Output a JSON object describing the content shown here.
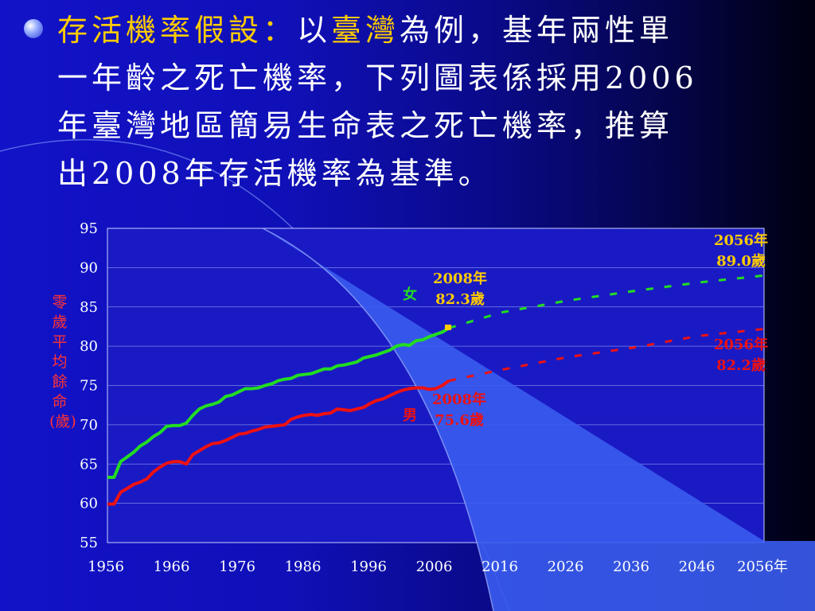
{
  "bullet_text": {
    "line1": {
      "title": "存活機率假設：",
      "pre": "以",
      "region": "臺灣",
      "post": "為例，基年兩性單"
    },
    "line2": "一年齡之死亡機率，下列圖表係採用2006",
    "line3": "年臺灣地區簡易生命表之死亡機率，推算",
    "line4": "出2008年存活機率為基準。"
  },
  "colors": {
    "female": "#22dd22",
    "male": "#ee1111",
    "highlight": "#ffcc00",
    "plot_bg": "#1a1ac4",
    "curve_fill": "#3a5cf0"
  },
  "chart_data": {
    "type": "line",
    "ylabel": "零歲平均餘命(歲)",
    "ylim": [
      55,
      95
    ],
    "xlim": [
      1956,
      2056
    ],
    "yticks": [
      "95",
      "90",
      "85",
      "80",
      "75",
      "70",
      "65",
      "60",
      "55"
    ],
    "xticks": [
      "1956",
      "1966",
      "1976",
      "1986",
      "1996",
      "2006",
      "2016",
      "2026",
      "2036",
      "2046",
      "2056年"
    ],
    "grid": true,
    "series": [
      {
        "name": "女",
        "color": "#22dd22",
        "x": [
          1956,
          1957,
          1958,
          1959,
          1960,
          1961,
          1962,
          1963,
          1964,
          1965,
          1966,
          1967,
          1968,
          1969,
          1970,
          1971,
          1972,
          1973,
          1974,
          1975,
          1976,
          1977,
          1978,
          1979,
          1980,
          1981,
          1982,
          1983,
          1984,
          1985,
          1986,
          1987,
          1988,
          1989,
          1990,
          1991,
          1992,
          1993,
          1994,
          1995,
          1996,
          1997,
          1998,
          1999,
          2000,
          2001,
          2002,
          2003,
          2004,
          2005,
          2006,
          2007,
          2008
        ],
        "y": [
          63.3,
          63.3,
          65.3,
          65.9,
          66.5,
          67.3,
          67.8,
          68.5,
          69.0,
          69.8,
          69.9,
          69.9,
          70.2,
          71.2,
          72.0,
          72.4,
          72.6,
          72.9,
          73.6,
          73.8,
          74.2,
          74.6,
          74.6,
          74.7,
          75.0,
          75.2,
          75.6,
          75.8,
          75.9,
          76.3,
          76.4,
          76.5,
          76.8,
          77.1,
          77.1,
          77.5,
          77.6,
          77.8,
          78.0,
          78.5,
          78.7,
          78.9,
          79.2,
          79.5,
          80.0,
          80.2,
          80.1,
          80.7,
          80.8,
          81.2,
          81.5,
          81.8,
          82.3
        ],
        "projection": {
          "x": [
            2008,
            2016,
            2026,
            2036,
            2046,
            2056
          ],
          "y": [
            82.3,
            84.3,
            85.8,
            87.0,
            88.1,
            89.0
          ]
        }
      },
      {
        "name": "男",
        "color": "#ee1111",
        "x": [
          1956,
          1957,
          1958,
          1959,
          1960,
          1961,
          1962,
          1963,
          1964,
          1965,
          1966,
          1967,
          1968,
          1969,
          1970,
          1971,
          1972,
          1973,
          1974,
          1975,
          1976,
          1977,
          1978,
          1979,
          1980,
          1981,
          1982,
          1983,
          1984,
          1985,
          1986,
          1987,
          1988,
          1989,
          1990,
          1991,
          1992,
          1993,
          1994,
          1995,
          1996,
          1997,
          1998,
          1999,
          2000,
          2001,
          2002,
          2003,
          2004,
          2005,
          2006,
          2007,
          2008
        ],
        "y": [
          59.9,
          59.9,
          61.4,
          61.9,
          62.4,
          62.7,
          63.1,
          64.0,
          64.6,
          65.1,
          65.3,
          65.3,
          65.0,
          66.2,
          66.7,
          67.2,
          67.6,
          67.7,
          68.0,
          68.4,
          68.8,
          68.9,
          69.2,
          69.4,
          69.7,
          69.8,
          69.9,
          70.0,
          70.7,
          71.0,
          71.2,
          71.3,
          71.2,
          71.4,
          71.5,
          72.0,
          71.9,
          71.8,
          72.0,
          72.2,
          72.7,
          73.1,
          73.3,
          73.7,
          74.1,
          74.4,
          74.6,
          74.7,
          74.7,
          74.5,
          74.6,
          75.0,
          75.6
        ],
        "projection": {
          "x": [
            2008,
            2016,
            2026,
            2036,
            2046,
            2056
          ],
          "y": [
            75.6,
            77.0,
            78.6,
            79.8,
            81.3,
            82.2
          ]
        }
      }
    ],
    "annotations": {
      "female_2008": {
        "year": "2008年",
        "age": "82.3歲"
      },
      "female_2056": {
        "year": "2056年",
        "age": "89.0歲"
      },
      "male_2008": {
        "year": "2008年",
        "age": "75.6歲"
      },
      "male_2056": {
        "year": "2056年",
        "age": "82.2歲"
      },
      "female_label": "女",
      "male_label": "男"
    }
  }
}
